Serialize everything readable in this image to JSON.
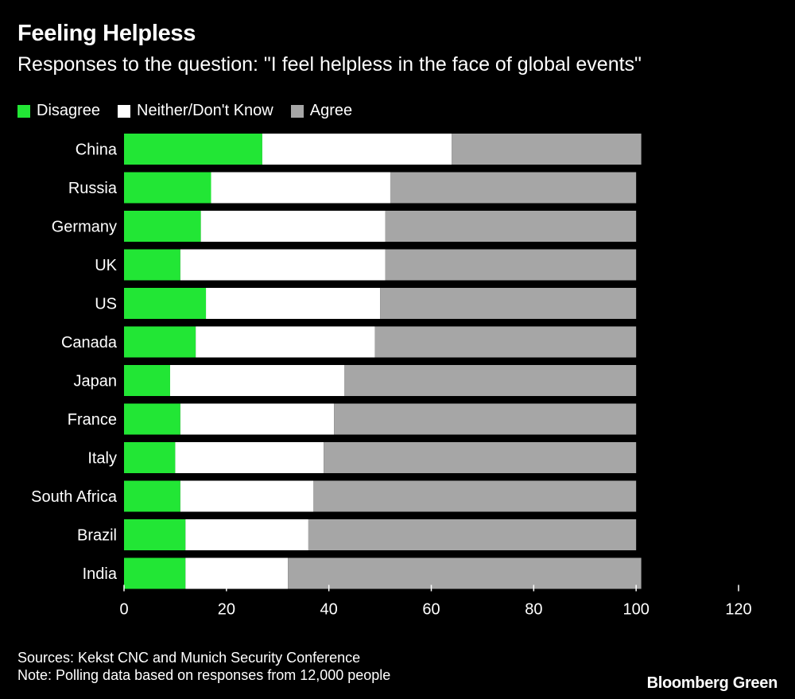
{
  "title": "Feeling Helpless",
  "subtitle": "Responses to the question: \"I feel helpless in the face of global events\"",
  "legend": [
    {
      "label": "Disagree",
      "color": "#22e635"
    },
    {
      "label": "Neither/Don't Know",
      "color": "#ffffff"
    },
    {
      "label": "Agree",
      "color": "#a6a6a6"
    }
  ],
  "chart_data": {
    "type": "bar",
    "orientation": "horizontal",
    "stacked": true,
    "categories": [
      "China",
      "Russia",
      "Germany",
      "UK",
      "US",
      "Canada",
      "Japan",
      "France",
      "Italy",
      "South Africa",
      "Brazil",
      "India"
    ],
    "series": [
      {
        "name": "Disagree",
        "color": "#22e635",
        "values": [
          27,
          17,
          15,
          11,
          16,
          14,
          9,
          11,
          10,
          11,
          12,
          12
        ]
      },
      {
        "name": "Neither/Don't Know",
        "color": "#ffffff",
        "values": [
          37,
          35,
          36,
          40,
          34,
          35,
          34,
          30,
          29,
          26,
          24,
          20
        ]
      },
      {
        "name": "Agree",
        "color": "#a6a6a6",
        "values": [
          37,
          48,
          49,
          49,
          50,
          51,
          57,
          59,
          61,
          63,
          64,
          69
        ]
      }
    ],
    "xlim": [
      0,
      120
    ],
    "xticks": [
      0,
      20,
      40,
      60,
      80,
      100,
      120
    ],
    "xlabel": "",
    "ylabel": ""
  },
  "footer": {
    "sources": "Sources: Kekst CNC and Munich Security Conference",
    "note": "Note: Polling data based on responses from 12,000 people"
  },
  "brand": "Bloomberg Green"
}
